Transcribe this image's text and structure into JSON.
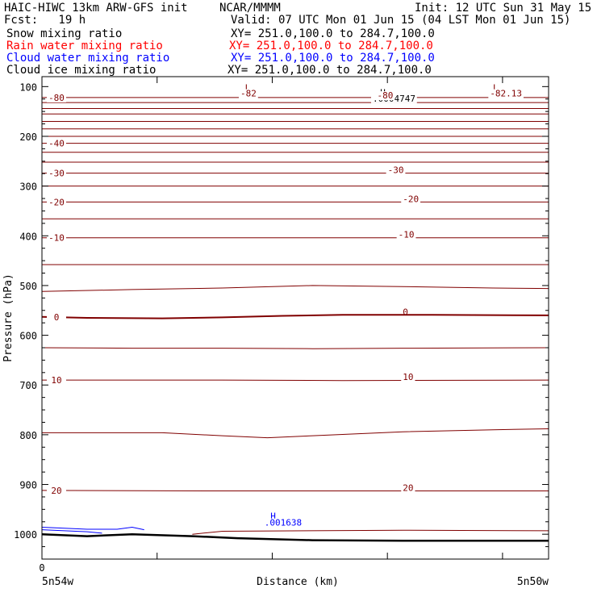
{
  "header": {
    "title_left": "HAIC-HIWC 13km ARW-GFS init",
    "org": "NCAR/MMMM",
    "init": "Init: 12 UTC Sun 31 May 15",
    "fcst": "Fcst:   19 h",
    "valid": "Valid: 07 UTC Mon 01 Jun 15 (04 LST Mon 01 Jun 15)"
  },
  "fields": [
    {
      "name": "Snow mixing ratio",
      "xy": "XY= 251.0,100.0 to 284.7,100.0",
      "color": "#000000"
    },
    {
      "name": "Rain water mixing ratio",
      "xy": "XY= 251.0,100.0 to 284.7,100.0",
      "color": "#ff0000"
    },
    {
      "name": "Cloud water mixing ratio",
      "xy": "XY= 251.0,100.0 to 284.7,100.0",
      "color": "#0000ff"
    },
    {
      "name": "Cloud ice mixing ratio",
      "xy": "XY= 251.0,100.0 to 284.7,100.0",
      "color": "#000000"
    }
  ],
  "chart_data": {
    "type": "line",
    "ylabel": "Pressure (hPa)",
    "xlabel": "Distance (km)",
    "x_range": [
      0,
      33.7
    ],
    "x_left_label": "5n54w",
    "x_right_label": "5n50w",
    "x_zero_label": "0",
    "yticks": [
      100,
      200,
      300,
      400,
      500,
      600,
      700,
      800,
      900,
      1000
    ],
    "ylim": [
      1050,
      80
    ],
    "colors": {
      "temperature": "#800000",
      "ground": "#000000",
      "cloud_water": "#0000ff",
      "ice_label": "#000000"
    },
    "temperature_isotherms": [
      {
        "label": "-80",
        "points": [
          [
            0,
            122
          ],
          [
            33.7,
            122
          ]
        ]
      },
      {
        "label": "",
        "points": [
          [
            0,
            132
          ],
          [
            33.7,
            132
          ]
        ]
      },
      {
        "label": "",
        "points": [
          [
            0,
            144
          ],
          [
            33.7,
            144
          ]
        ]
      },
      {
        "label": "",
        "points": [
          [
            0,
            155
          ],
          [
            33.7,
            155
          ]
        ]
      },
      {
        "label": "",
        "points": [
          [
            0,
            170
          ],
          [
            33.7,
            170
          ]
        ]
      },
      {
        "label": "",
        "points": [
          [
            0,
            185
          ],
          [
            33.7,
            185
          ]
        ]
      },
      {
        "label": "",
        "points": [
          [
            0,
            200
          ],
          [
            33.7,
            200
          ]
        ]
      },
      {
        "label": "-40",
        "points": [
          [
            0,
            214
          ],
          [
            33.7,
            214
          ]
        ]
      },
      {
        "label": "",
        "points": [
          [
            0,
            232
          ],
          [
            33.7,
            232
          ]
        ]
      },
      {
        "label": "",
        "points": [
          [
            0,
            252
          ],
          [
            33.7,
            252
          ]
        ]
      },
      {
        "label": "-30",
        "points": [
          [
            0,
            274
          ],
          [
            33.7,
            274
          ]
        ]
      },
      {
        "label": "",
        "points": [
          [
            0,
            300
          ],
          [
            33.7,
            300
          ]
        ]
      },
      {
        "label": "-20",
        "points": [
          [
            0,
            332
          ],
          [
            33.7,
            332
          ]
        ]
      },
      {
        "label": "",
        "points": [
          [
            0,
            366
          ],
          [
            33.7,
            366
          ]
        ]
      },
      {
        "label": "-10",
        "points": [
          [
            0,
            404
          ],
          [
            33.7,
            404
          ]
        ]
      },
      {
        "label": "",
        "points": [
          [
            0,
            458
          ],
          [
            33.7,
            458
          ]
        ]
      },
      {
        "label": "",
        "points": [
          [
            0,
            512
          ],
          [
            6,
            508
          ],
          [
            12,
            505
          ],
          [
            18,
            500
          ],
          [
            24,
            502
          ],
          [
            30,
            505
          ],
          [
            33.7,
            506
          ]
        ]
      },
      {
        "label": "0",
        "points": [
          [
            0,
            563
          ],
          [
            3,
            565
          ],
          [
            8,
            566
          ],
          [
            12,
            564
          ],
          [
            16,
            561
          ],
          [
            20,
            559
          ],
          [
            26,
            559
          ],
          [
            33.7,
            560
          ]
        ]
      },
      {
        "label": "",
        "points": [
          [
            0,
            625
          ],
          [
            6,
            626
          ],
          [
            12,
            626
          ],
          [
            18,
            627
          ],
          [
            24,
            626
          ],
          [
            33.7,
            625
          ]
        ]
      },
      {
        "label": "10",
        "points": [
          [
            0,
            690
          ],
          [
            12,
            690
          ],
          [
            20,
            691
          ],
          [
            33.7,
            690
          ]
        ]
      },
      {
        "label": "",
        "points": [
          [
            0,
            796
          ],
          [
            8,
            796
          ],
          [
            12,
            802
          ],
          [
            15,
            806
          ],
          [
            18,
            802
          ],
          [
            24,
            794
          ],
          [
            30,
            790
          ],
          [
            33.7,
            788
          ]
        ]
      },
      {
        "label": "20",
        "points": [
          [
            0,
            912
          ],
          [
            12,
            913
          ],
          [
            24,
            913
          ],
          [
            33.7,
            913
          ]
        ]
      },
      {
        "label": "",
        "points": [
          [
            10,
            1000
          ],
          [
            12,
            994
          ],
          [
            24,
            992
          ],
          [
            33.7,
            993
          ]
        ]
      }
    ],
    "ground_surface": [
      [
        0,
        1000
      ],
      [
        3,
        1004
      ],
      [
        6,
        1000
      ],
      [
        10,
        1004
      ],
      [
        13,
        1008
      ],
      [
        18,
        1012
      ],
      [
        24,
        1013
      ],
      [
        33.7,
        1013
      ]
    ],
    "cloud_water_contours": [
      {
        "points": [
          [
            0,
            991
          ],
          [
            3,
            995
          ],
          [
            4,
            998
          ]
        ]
      },
      {
        "points": [
          [
            0,
            986
          ],
          [
            3,
            990
          ],
          [
            5,
            990
          ],
          [
            6,
            986
          ],
          [
            6.8,
            991
          ]
        ]
      }
    ],
    "annotations": [
      {
        "text": "L",
        "x": 13.5,
        "y": 108,
        "color": "#800000"
      },
      {
        "text": "-82",
        "x": 13.2,
        "y": 120,
        "color": "#800000"
      },
      {
        "text": "L",
        "x": 30.0,
        "y": 108,
        "color": "#800000"
      },
      {
        "text": "-82.13",
        "x": 29.8,
        "y": 120,
        "color": "#800000"
      },
      {
        "text": "H",
        "x": 22.5,
        "y": 118,
        "color": "#000000"
      },
      {
        "text": ".0004747",
        "x": 22.0,
        "y": 130,
        "color": "#000000"
      },
      {
        "text": "-80",
        "x": 22.3,
        "y": 124,
        "color": "#800000"
      },
      {
        "text": "-30",
        "x": 23.0,
        "y": 274,
        "color": "#800000"
      },
      {
        "text": "-20",
        "x": 24.0,
        "y": 332,
        "color": "#800000"
      },
      {
        "text": "-10",
        "x": 23.7,
        "y": 404,
        "color": "#800000"
      },
      {
        "text": "0",
        "x": 24.0,
        "y": 559,
        "color": "#800000"
      },
      {
        "text": "10",
        "x": 24.0,
        "y": 690,
        "color": "#800000"
      },
      {
        "text": "20",
        "x": 24.0,
        "y": 913,
        "color": "#800000"
      },
      {
        "text": "H",
        "x": 15.2,
        "y": 970,
        "color": "#0000ff"
      },
      {
        "text": ".001638",
        "x": 14.8,
        "y": 983,
        "color": "#0000ff"
      }
    ]
  }
}
